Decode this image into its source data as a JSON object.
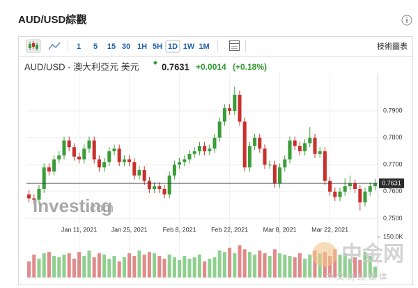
{
  "header": {
    "title": "AUD/USD綜觀",
    "info": "i"
  },
  "toolbar": {
    "intervals": [
      "1",
      "5",
      "15",
      "30",
      "1H",
      "5H",
      "1D",
      "1W",
      "1M"
    ],
    "active_interval": 6,
    "chart_button": "技術圖表"
  },
  "quote": {
    "name": "AUD/USD - 澳大利亞元 美元",
    "price": "0.7631",
    "change": "+0.0014",
    "change_pct": "(+0.18%)"
  },
  "watermark": {
    "brand": "Investing",
    "suffix": ".com",
    "corner_logo": "中金网",
    "corner_sub": "中 文 财 经 媒 体"
  },
  "chart_data": {
    "type": "candlestick",
    "categories": [
      null,
      null,
      null,
      null,
      null,
      null,
      null,
      null,
      null,
      null,
      "Jan 11, 2021",
      null,
      null,
      null,
      null,
      null,
      null,
      null,
      null,
      null,
      "Jan 25, 2021",
      null,
      null,
      null,
      null,
      null,
      null,
      null,
      null,
      null,
      "Feb 8, 2021",
      null,
      null,
      null,
      null,
      null,
      null,
      null,
      null,
      null,
      "Feb 22, 2021",
      null,
      null,
      null,
      null,
      null,
      null,
      null,
      null,
      null,
      "Mar 8, 2021",
      null,
      null,
      null,
      null,
      null,
      null,
      null,
      null,
      null,
      "Mar 22, 2021",
      null,
      null,
      null,
      null,
      null,
      null,
      null,
      null,
      null
    ],
    "open": [
      0.759,
      0.7575,
      0.757,
      0.761,
      0.769,
      0.7675,
      0.772,
      0.7735,
      0.779,
      0.7765,
      0.773,
      0.772,
      0.776,
      0.779,
      0.772,
      0.769,
      0.771,
      0.775,
      0.776,
      0.771,
      0.772,
      0.771,
      0.766,
      0.768,
      0.764,
      0.761,
      0.762,
      0.761,
      0.759,
      0.766,
      0.77,
      0.771,
      0.772,
      0.774,
      0.775,
      0.777,
      0.775,
      0.776,
      0.78,
      0.786,
      0.791,
      0.79,
      0.796,
      0.786,
      0.769,
      0.777,
      0.78,
      0.776,
      0.77,
      0.77,
      0.763,
      0.769,
      0.772,
      0.779,
      0.777,
      0.775,
      0.778,
      0.78,
      0.774,
      0.775,
      0.764,
      0.76,
      0.758,
      0.76,
      0.762,
      0.763,
      0.761,
      0.756,
      0.76,
      0.762
    ],
    "high": [
      0.7605,
      0.759,
      0.7625,
      0.7705,
      0.7705,
      0.7735,
      0.775,
      0.7805,
      0.7805,
      0.778,
      0.7745,
      0.7775,
      0.7805,
      0.7805,
      0.7735,
      0.7725,
      0.7765,
      0.7775,
      0.7775,
      0.7735,
      0.7735,
      0.7725,
      0.7695,
      0.7695,
      0.7655,
      0.7635,
      0.7635,
      0.7625,
      0.7675,
      0.7715,
      0.7725,
      0.7735,
      0.7755,
      0.7765,
      0.7785,
      0.7785,
      0.7775,
      0.7815,
      0.7875,
      0.7925,
      0.7925,
      0.799,
      0.7975,
      0.7875,
      0.7785,
      0.7815,
      0.7815,
      0.7775,
      0.7715,
      0.7715,
      0.7705,
      0.7735,
      0.7805,
      0.7805,
      0.7785,
      0.7795,
      0.784,
      0.7815,
      0.7765,
      0.7765,
      0.7655,
      0.7615,
      0.7615,
      0.765,
      0.766,
      0.7645,
      0.7625,
      0.7615,
      0.7635,
      0.7646
    ],
    "low": [
      0.756,
      0.7555,
      0.7555,
      0.7595,
      0.766,
      0.766,
      0.7705,
      0.772,
      0.775,
      0.7715,
      0.7705,
      0.7705,
      0.7745,
      0.7705,
      0.7675,
      0.7675,
      0.7695,
      0.7735,
      0.7695,
      0.7695,
      0.7695,
      0.7645,
      0.7645,
      0.7625,
      0.7595,
      0.7595,
      0.7595,
      0.7575,
      0.7575,
      0.7645,
      0.7685,
      0.7695,
      0.7705,
      0.7725,
      0.7735,
      0.7735,
      0.7735,
      0.7745,
      0.7785,
      0.7845,
      0.7885,
      0.7885,
      0.7845,
      0.7675,
      0.7675,
      0.7755,
      0.7745,
      0.7685,
      0.7685,
      0.7615,
      0.7615,
      0.7675,
      0.7705,
      0.7755,
      0.7735,
      0.7735,
      0.7765,
      0.7725,
      0.7725,
      0.7625,
      0.7585,
      0.7565,
      0.7565,
      0.7585,
      0.7605,
      0.7595,
      0.753,
      0.7545,
      0.7585,
      0.7605
    ],
    "close": [
      0.7575,
      0.757,
      0.761,
      0.769,
      0.7675,
      0.772,
      0.7735,
      0.779,
      0.7765,
      0.773,
      0.772,
      0.776,
      0.779,
      0.772,
      0.769,
      0.771,
      0.775,
      0.776,
      0.771,
      0.772,
      0.771,
      0.766,
      0.768,
      0.764,
      0.761,
      0.762,
      0.761,
      0.759,
      0.766,
      0.77,
      0.771,
      0.772,
      0.774,
      0.775,
      0.777,
      0.775,
      0.776,
      0.78,
      0.786,
      0.791,
      0.79,
      0.796,
      0.786,
      0.769,
      0.777,
      0.78,
      0.776,
      0.77,
      0.77,
      0.763,
      0.769,
      0.772,
      0.779,
      0.777,
      0.775,
      0.778,
      0.78,
      0.774,
      0.775,
      0.764,
      0.76,
      0.758,
      0.76,
      0.762,
      0.763,
      0.761,
      0.756,
      0.76,
      0.762,
      0.7631
    ],
    "up_color": "#3a9d3a",
    "down_color": "#c9302c",
    "volume_up_color": "#8fcf8f",
    "volume_down_color": "#e08a8a",
    "ylim": [
      0.747,
      0.804
    ],
    "yticks": [
      {
        "value": 0.75,
        "label": "0.7500"
      },
      {
        "value": 0.76,
        "label": "0.7600"
      },
      {
        "value": 0.77,
        "label": "0.7700"
      },
      {
        "value": 0.78,
        "label": "0.7800"
      },
      {
        "value": 0.79,
        "label": "0.7900"
      }
    ],
    "last_price": {
      "value": 0.7631,
      "label": "0.7631"
    },
    "grid": true,
    "volume": {
      "values": [
        60000,
        85000,
        70000,
        90000,
        95000,
        80000,
        75000,
        85000,
        90000,
        70000,
        95000,
        80000,
        100000,
        75000,
        90000,
        85000,
        70000,
        80000,
        60000,
        75000,
        90000,
        80000,
        100000,
        85000,
        95000,
        90000,
        80000,
        70000,
        85000,
        75000,
        65000,
        80000,
        70000,
        75000,
        85000,
        60000,
        70000,
        75000,
        100000,
        95000,
        110000,
        90000,
        120000,
        105000,
        95000,
        85000,
        100000,
        90000,
        80000,
        105000,
        90000,
        85000,
        80000,
        75000,
        90000,
        70000,
        85000,
        100000,
        90000,
        95000,
        80000,
        105000,
        85000,
        90000,
        70000,
        75000,
        65000,
        95000,
        80000,
        40000
      ],
      "ylim": [
        0,
        150000
      ],
      "yticks": [
        {
          "value": 150000,
          "label": "150.0K"
        }
      ]
    }
  }
}
